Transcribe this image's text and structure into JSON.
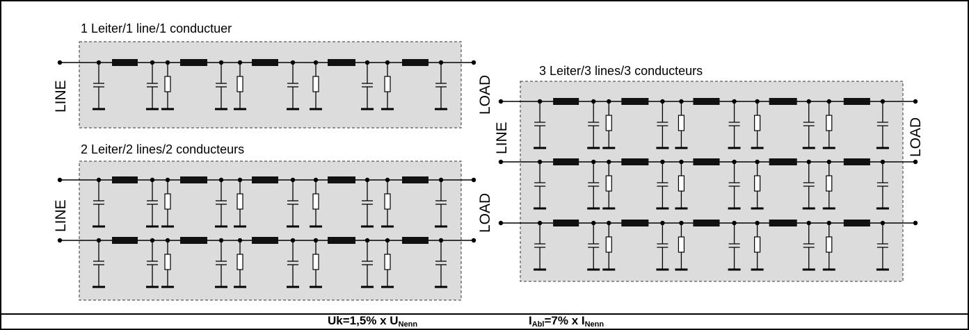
{
  "panels": {
    "one_line": {
      "title": "1 Leiter/1 line/1 conductuer"
    },
    "two_lines": {
      "title": "2 Leiter/2 lines/2 conducteurs"
    },
    "three_lines": {
      "title": "3 Leiter/3 lines/3 conducteurs"
    }
  },
  "terminals": {
    "line": "LINE",
    "load": "LOAD"
  },
  "formula": {
    "uk_main": "Uk=1,5% x U",
    "uk_sub": "Nenn",
    "i_main": "I",
    "i_sub1": "Abl",
    "i_mid": "=7% x I",
    "i_sub2": "Nenn"
  },
  "colors": {
    "panel_fill": "#dcdcdc",
    "ink": "#000000",
    "frame": "#000000"
  }
}
